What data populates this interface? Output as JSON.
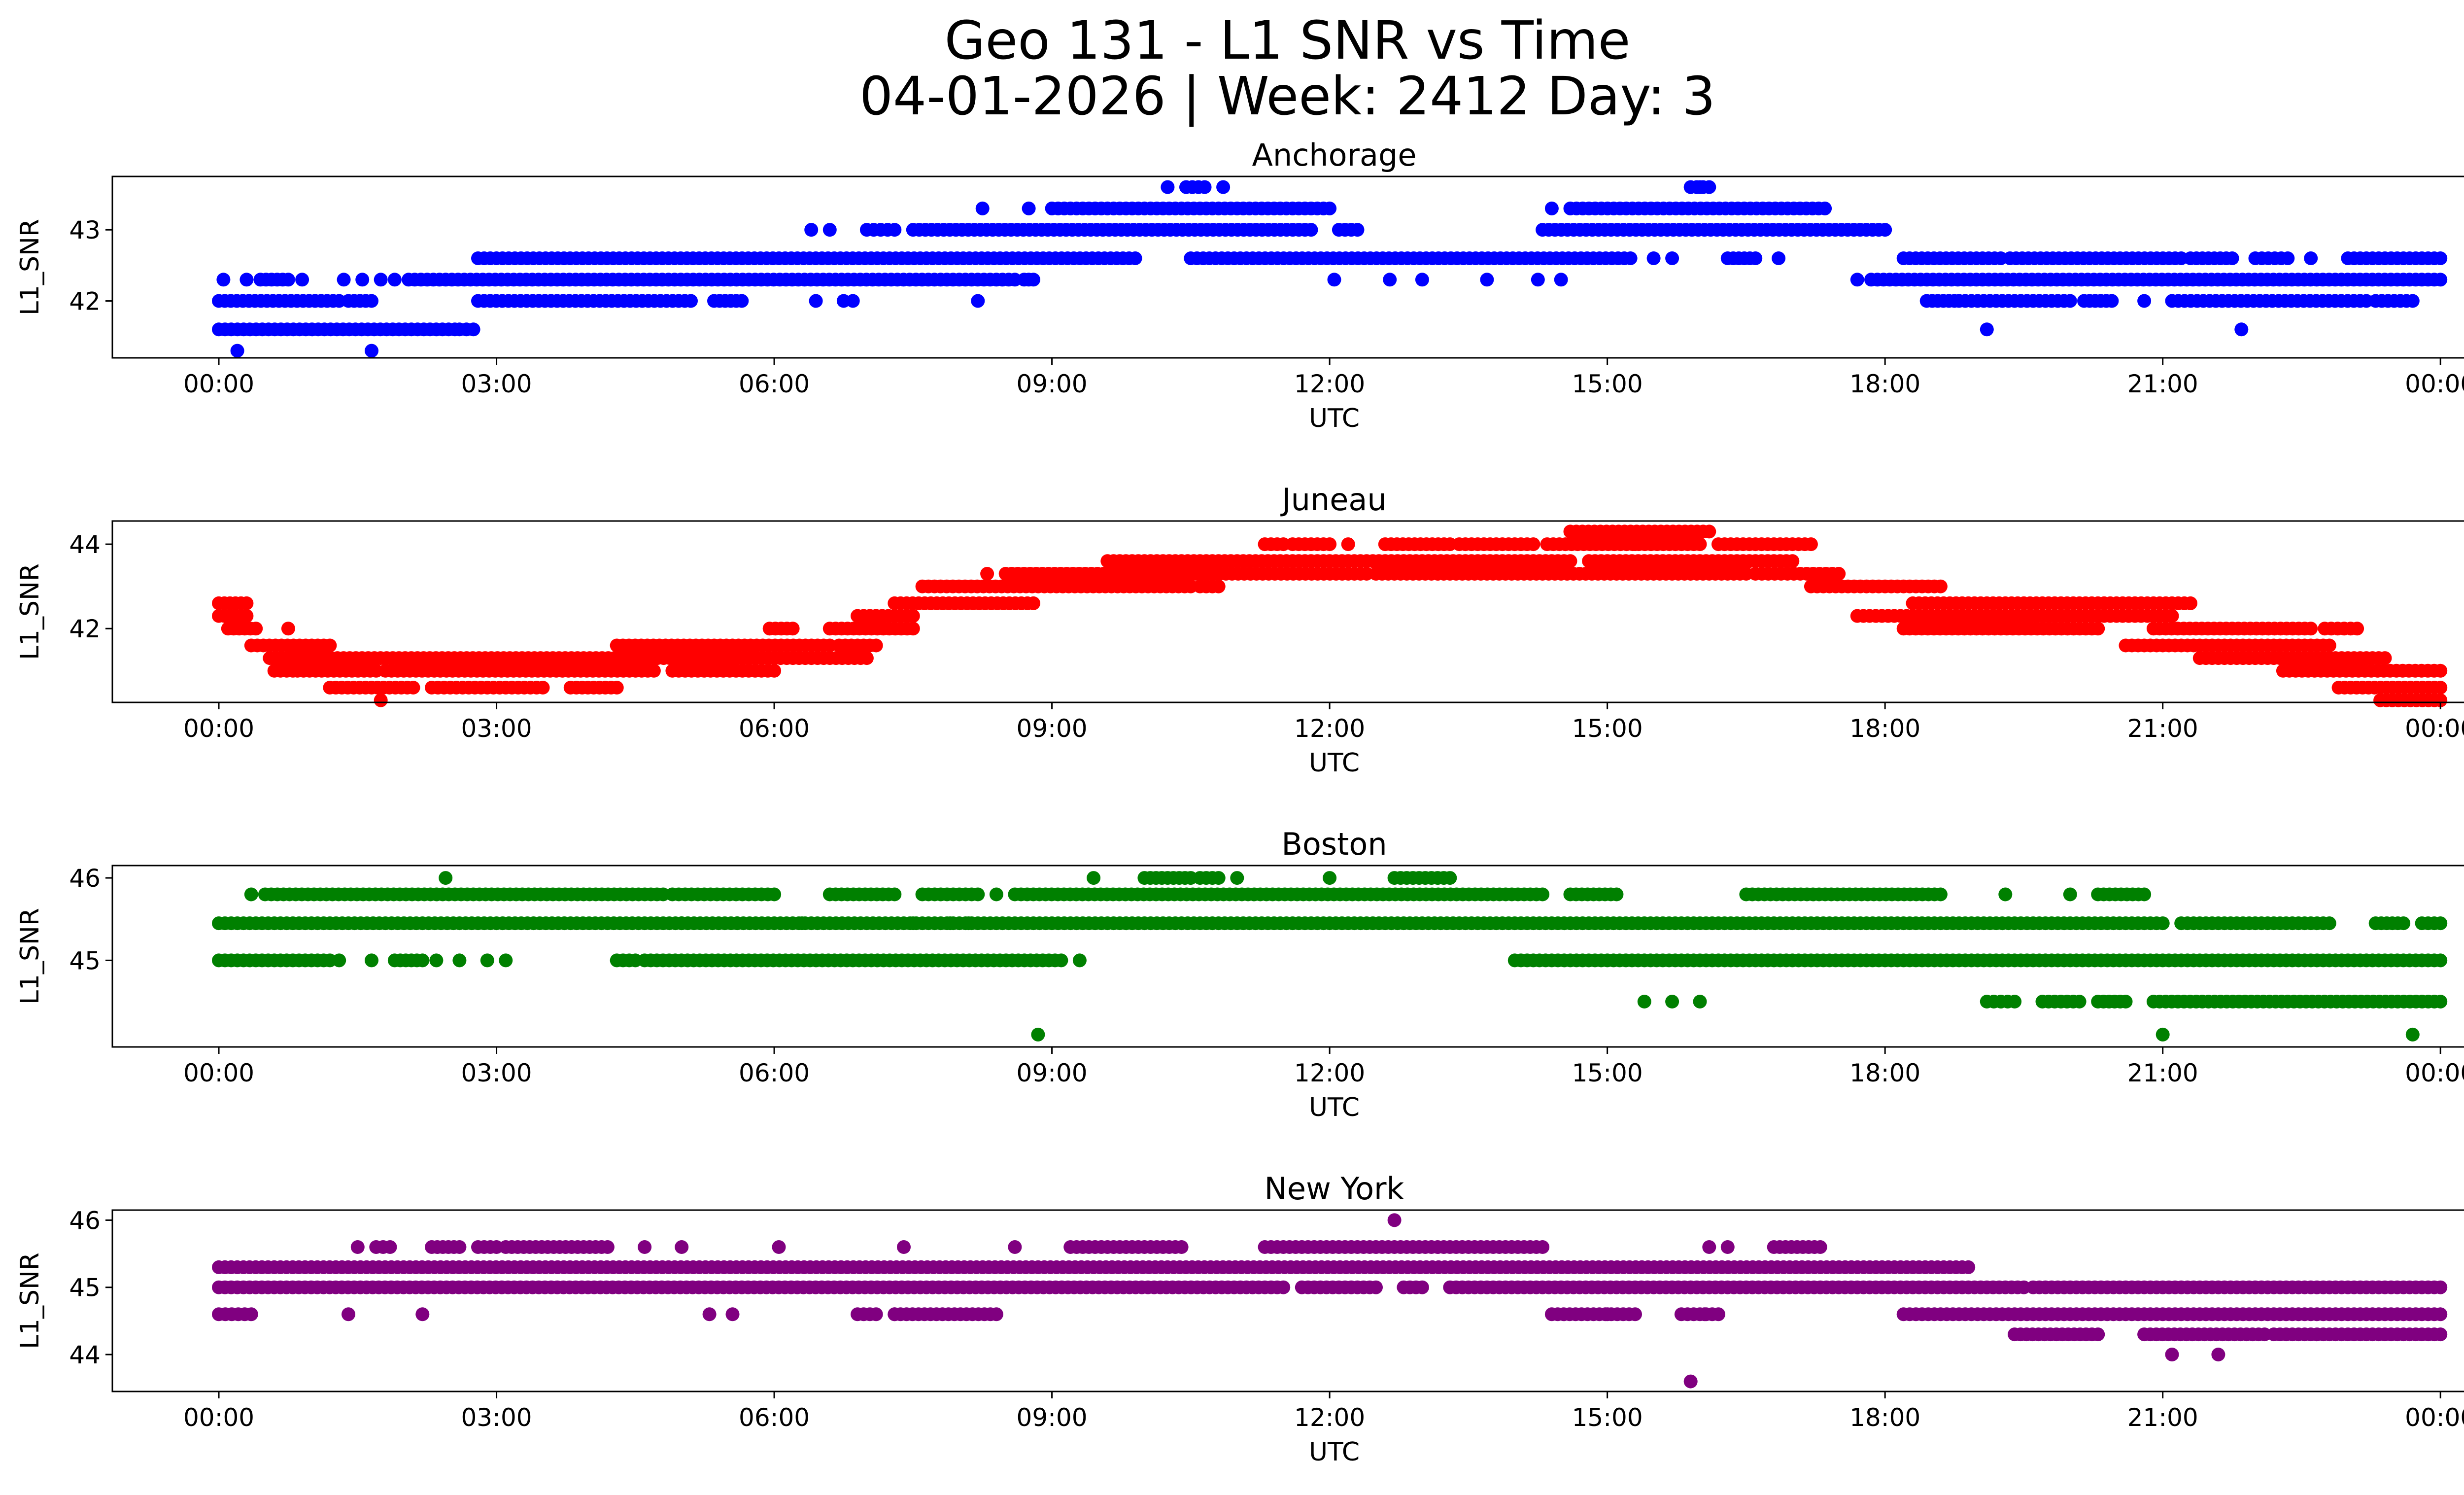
{
  "figure": {
    "title_line1": "Geo 131 - L1 SNR vs Time",
    "title_line2": "04-01-2026 | Week: 2412 Day: 3"
  },
  "chart_data": [
    {
      "type": "scatter",
      "title": "Anchorage",
      "xlabel": "UTC",
      "ylabel": "L1_SNR",
      "color": "#0000ff",
      "xticks": [
        "00:00",
        "03:00",
        "06:00",
        "09:00",
        "12:00",
        "15:00",
        "18:00",
        "21:00",
        "00:00"
      ],
      "xlim_hours": [
        -1.15,
        25.25
      ],
      "yticks": [
        42,
        43
      ],
      "ylim": [
        41.2,
        43.75
      ],
      "levels": [
        41.3,
        41.6,
        42.0,
        42.3,
        42.6,
        43.0,
        43.3,
        43.6
      ],
      "series": [
        {
          "level": 41.3,
          "points": [
            0.2,
            1.65
          ],
          "segments": []
        },
        {
          "level": 41.6,
          "points": [
            19.1,
            21.85
          ],
          "segments": [
            [
              0,
              2.55
            ],
            [
              2.6,
              2.75
            ]
          ]
        },
        {
          "level": 42.0,
          "points": [
            6.45,
            6.75,
            6.85,
            8.2,
            20.8
          ],
          "segments": [
            [
              0,
              1.3
            ],
            [
              1.4,
              1.65
            ],
            [
              2.8,
              5.1
            ],
            [
              5.35,
              5.65
            ],
            [
              18.45,
              18.75
            ],
            [
              18.8,
              20.0
            ],
            [
              20.15,
              20.45
            ],
            [
              21.1,
              23.2
            ],
            [
              23.3,
              23.7
            ]
          ]
        },
        {
          "level": 42.3,
          "points": [
            0.05,
            0.3,
            0.9,
            1.35,
            1.55,
            1.75,
            1.9,
            12.05,
            12.65,
            13.0,
            13.7,
            14.25,
            14.5,
            17.7
          ],
          "segments": [
            [
              0.45,
              0.75
            ],
            [
              2.05,
              8.6
            ],
            [
              8.7,
              8.8
            ],
            [
              17.85,
              24
            ]
          ]
        },
        {
          "level": 42.6,
          "points": [
            15.5,
            15.7,
            16.85,
            22.6
          ],
          "segments": [
            [
              2.8,
              9.9
            ],
            [
              10.5,
              15.25
            ],
            [
              16.3,
              16.6
            ],
            [
              18.2,
              19.25
            ],
            [
              19.35,
              21.2
            ],
            [
              21.3,
              21.75
            ],
            [
              22.0,
              22.35
            ],
            [
              23.0,
              24
            ]
          ]
        },
        {
          "level": 43.0,
          "points": [
            6.4,
            6.6
          ],
          "segments": [
            [
              7.0,
              7.3
            ],
            [
              7.5,
              11.8
            ],
            [
              12.1,
              12.3
            ],
            [
              14.3,
              18.0
            ]
          ]
        },
        {
          "level": 43.3,
          "points": [
            8.25,
            8.75,
            14.4
          ],
          "segments": [
            [
              9.0,
              12.0
            ],
            [
              14.6,
              17.35
            ]
          ]
        },
        {
          "level": 43.6,
          "points": [
            10.25,
            10.85,
            16.0
          ],
          "segments": [
            [
              10.45,
              10.65
            ],
            [
              15.9,
              16.1
            ]
          ]
        }
      ]
    },
    {
      "type": "scatter",
      "title": "Juneau",
      "xlabel": "UTC",
      "ylabel": "L1_SNR",
      "color": "#ff0000",
      "xticks": [
        "00:00",
        "03:00",
        "06:00",
        "09:00",
        "12:00",
        "15:00",
        "18:00",
        "21:00",
        "00:00"
      ],
      "xlim_hours": [
        -1.15,
        25.25
      ],
      "yticks": [
        42,
        44
      ],
      "ylim": [
        40.25,
        44.55
      ],
      "levels": [
        40.3,
        40.6,
        41.0,
        41.3,
        41.6,
        42.0,
        42.3,
        42.6,
        43.0,
        43.3,
        43.6,
        44.0,
        44.3
      ],
      "series": [
        {
          "level": 40.3,
          "points": [
            1.75
          ],
          "segments": [
            [
              23.35,
              24
            ]
          ]
        },
        {
          "level": 40.6,
          "points": [],
          "segments": [
            [
              1.2,
              2.1
            ],
            [
              2.3,
              3.5
            ],
            [
              3.8,
              4.3
            ],
            [
              22.9,
              24
            ]
          ]
        },
        {
          "level": 41.0,
          "points": [],
          "segments": [
            [
              0.6,
              0.8
            ],
            [
              0.85,
              1.7
            ],
            [
              1.8,
              4.7
            ],
            [
              4.9,
              6.0
            ],
            [
              22.3,
              24
            ]
          ]
        },
        {
          "level": 41.3,
          "points": [],
          "segments": [
            [
              0.55,
              7.0
            ],
            [
              21.4,
              23.4
            ]
          ]
        },
        {
          "level": 41.6,
          "points": [],
          "segments": [
            [
              0.35,
              1.2
            ],
            [
              4.3,
              6.6
            ],
            [
              6.7,
              7.1
            ],
            [
              20.6,
              22.8
            ]
          ]
        },
        {
          "level": 42.0,
          "points": [
            0.75
          ],
          "segments": [
            [
              0.1,
              0.4
            ],
            [
              5.95,
              6.2
            ],
            [
              6.6,
              7.5
            ],
            [
              18.2,
              20.3
            ],
            [
              20.9,
              22.6
            ],
            [
              22.75,
              23.1
            ]
          ]
        },
        {
          "level": 42.3,
          "points": [],
          "segments": [
            [
              0,
              0.3
            ],
            [
              6.9,
              7.5
            ],
            [
              17.7,
              21.1
            ]
          ]
        },
        {
          "level": 42.6,
          "points": [],
          "segments": [
            [
              0,
              0.3
            ],
            [
              7.3,
              8.8
            ],
            [
              18.3,
              21.3
            ]
          ]
        },
        {
          "level": 43.0,
          "points": [],
          "segments": [
            [
              7.6,
              10.5
            ],
            [
              10.6,
              10.8
            ],
            [
              17.2,
              18.6
            ]
          ]
        },
        {
          "level": 43.3,
          "points": [
            8.3
          ],
          "segments": [
            [
              8.5,
              12.4
            ],
            [
              12.5,
              16.5
            ],
            [
              16.6,
              17.5
            ]
          ]
        },
        {
          "level": 43.6,
          "points": [],
          "segments": [
            [
              9.6,
              14.6
            ],
            [
              14.8,
              17.0
            ]
          ]
        },
        {
          "level": 44.0,
          "points": [
            12.2,
            15.3
          ],
          "segments": [
            [
              11.3,
              11.5
            ],
            [
              11.6,
              12.0
            ],
            [
              12.6,
              13.3
            ],
            [
              13.4,
              14.2
            ],
            [
              14.35,
              16.0
            ],
            [
              16.2,
              17.2
            ]
          ]
        },
        {
          "level": 44.3,
          "points": [],
          "segments": [
            [
              14.6,
              16.1
            ]
          ]
        }
      ]
    },
    {
      "type": "scatter",
      "title": "Boston",
      "xlabel": "UTC",
      "ylabel": "L1_SNR",
      "color": "#008000",
      "xticks": [
        "00:00",
        "03:00",
        "06:00",
        "09:00",
        "12:00",
        "15:00",
        "18:00",
        "21:00",
        "00:00"
      ],
      "xlim_hours": [
        -1.15,
        25.25
      ],
      "yticks": [
        45,
        46
      ],
      "ylim": [
        43.95,
        46.15
      ],
      "levels": [
        44.1,
        44.5,
        45.0,
        45.45,
        45.8,
        46.0
      ],
      "series": [
        {
          "level": 44.1,
          "points": [
            8.85,
            21.0,
            23.7
          ],
          "segments": []
        },
        {
          "level": 44.5,
          "points": [
            15.4,
            15.7,
            16.0
          ],
          "segments": [
            [
              19.1,
              19.4
            ],
            [
              19.7,
              20.1
            ],
            [
              20.3,
              20.6
            ],
            [
              20.9,
              24
            ]
          ]
        },
        {
          "level": 45.0,
          "points": [
            1.3,
            1.65,
            2.35,
            2.6,
            2.9,
            3.1,
            9.3
          ],
          "segments": [
            [
              0,
              1.2
            ],
            [
              1.9,
              2.2
            ],
            [
              4.3,
              4.5
            ],
            [
              4.6,
              9.1
            ],
            [
              14.0,
              24
            ]
          ]
        },
        {
          "level": 45.45,
          "points": [
            5.0,
            5.6,
            6.3,
            7.5,
            7.9,
            8.1
          ],
          "segments": [
            [
              0,
              21.0
            ],
            [
              21.2,
              22.8
            ],
            [
              23.3,
              23.6
            ],
            [
              23.8,
              24
            ]
          ]
        },
        {
          "level": 45.8,
          "points": [
            0.35,
            8.4,
            19.3,
            20.0
          ],
          "segments": [
            [
              0.5,
              4.8
            ],
            [
              4.9,
              6.0
            ],
            [
              6.6,
              7.3
            ],
            [
              7.6,
              8.2
            ],
            [
              8.6,
              14.3
            ],
            [
              14.6,
              15.1
            ],
            [
              16.5,
              18.6
            ],
            [
              20.3,
              20.8
            ]
          ]
        },
        {
          "level": 46.0,
          "points": [
            2.45,
            9.45,
            11.0,
            12.0
          ],
          "segments": [
            [
              10.0,
              10.5
            ],
            [
              10.6,
              10.8
            ],
            [
              12.7,
              13.3
            ]
          ]
        }
      ]
    },
    {
      "type": "scatter",
      "title": "New York",
      "xlabel": "UTC",
      "ylabel": "L1_SNR",
      "color": "#800080",
      "xticks": [
        "00:00",
        "03:00",
        "06:00",
        "09:00",
        "12:00",
        "15:00",
        "18:00",
        "21:00",
        "00:00"
      ],
      "xlim_hours": [
        -1.15,
        25.25
      ],
      "yticks": [
        44,
        45,
        46
      ],
      "ylim": [
        43.45,
        46.15
      ],
      "levels": [
        43.6,
        44.0,
        44.3,
        44.6,
        45.0,
        45.3,
        45.6,
        46.0
      ],
      "series": [
        {
          "level": 43.6,
          "points": [
            15.9
          ],
          "segments": []
        },
        {
          "level": 44.0,
          "points": [
            21.1,
            21.6
          ],
          "segments": []
        },
        {
          "level": 44.3,
          "points": [],
          "segments": [
            [
              19.4,
              20.3
            ],
            [
              20.8,
              22.1
            ],
            [
              22.2,
              24
            ]
          ]
        },
        {
          "level": 44.6,
          "points": [
            1.4,
            2.2,
            5.3,
            5.55,
            7.3,
            15.0,
            16.05
          ],
          "segments": [
            [
              0,
              0.35
            ],
            [
              6.9,
              7.1
            ],
            [
              7.3,
              8.4
            ],
            [
              14.4,
              15.3
            ],
            [
              15.8,
              16.2
            ],
            [
              18.2,
              24
            ]
          ]
        },
        {
          "level": 45.0,
          "points": [],
          "segments": [
            [
              0,
              11.5
            ],
            [
              11.7,
              12.5
            ],
            [
              12.8,
              13.0
            ],
            [
              13.3,
              19.5
            ],
            [
              19.6,
              24
            ]
          ]
        },
        {
          "level": 45.3,
          "points": [],
          "segments": [
            [
              0,
              18.9
            ]
          ]
        },
        {
          "level": 45.6,
          "points": [
            1.5,
            4.6,
            5.0,
            6.05,
            7.4,
            8.6,
            16.1,
            16.3
          ],
          "segments": [
            [
              1.7,
              1.85
            ],
            [
              2.3,
              2.6
            ],
            [
              2.8,
              3.0
            ],
            [
              3.1,
              4.2
            ],
            [
              9.2,
              10.4
            ],
            [
              11.3,
              14.3
            ],
            [
              16.8,
              17.3
            ]
          ]
        },
        {
          "level": 46.0,
          "points": [
            12.7
          ],
          "segments": []
        }
      ]
    }
  ]
}
